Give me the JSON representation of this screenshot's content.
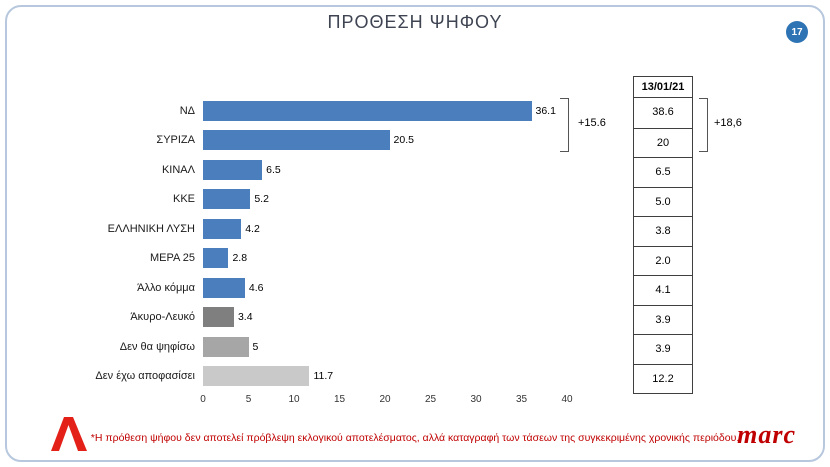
{
  "page": {
    "title": "ΠΡΟΘΕΣΗ ΨΗΦΟΥ",
    "page_number": "17",
    "footnote": "*Η πρόθεση ψήφου δεν αποτελεί πρόβλεψη εκλογικού αποτελέσματος, αλλά καταγραφή των τάσεων της συγκεκριμένης χρονικής περιόδου.",
    "brand_right": "marc"
  },
  "colors": {
    "bar_blue": "#4a7ebc",
    "gray_dark": "#7f7f7f",
    "gray_mid": "#a6a6a6",
    "gray_light": "#c9c9c9",
    "badge_blue": "#2e74b5",
    "accent_red": "#c00000",
    "alpha_red": "#e32119",
    "card_border": "#b7c7de"
  },
  "chart_data": {
    "type": "bar",
    "orientation": "horizontal",
    "title": "ΠΡΟΘΕΣΗ ΨΗΦΟΥ",
    "categories": [
      "ΝΔ",
      "ΣΥΡΙΖΑ",
      "ΚΙΝΑΛ",
      "ΚΚΕ",
      "ΕΛΛΗΝΙΚΗ ΛΥΣΗ",
      "ΜΕΡΑ 25",
      "Άλλο κόμμα",
      "Άκυρο-Λευκό",
      "Δεν θα ψηφίσω",
      "Δεν έχω αποφασίσει"
    ],
    "values": [
      36.1,
      20.5,
      6.5,
      5.2,
      4.2,
      2.8,
      4.6,
      3.4,
      5,
      11.7
    ],
    "value_labels": [
      "36.1",
      "20.5",
      "6.5",
      "5.2",
      "4.2",
      "2.8",
      "4.6",
      "3.4",
      "5",
      "11.7"
    ],
    "bar_colors": [
      "#4a7ebc",
      "#4a7ebc",
      "#4a7ebc",
      "#4a7ebc",
      "#4a7ebc",
      "#4a7ebc",
      "#4a7ebc",
      "#7f7f7f",
      "#a6a6a6",
      "#c9c9c9"
    ],
    "xlim": [
      0,
      40
    ],
    "x_ticks": [
      "0",
      "5",
      "10",
      "15",
      "20",
      "25",
      "30",
      "35",
      "40"
    ],
    "grid": false,
    "annotation_current": "+15.6",
    "previous": {
      "header": "13/01/21",
      "values": [
        "38.6",
        "20",
        "6.5",
        "5.0",
        "3.8",
        "2.0",
        "4.1",
        "3.9",
        "3.9",
        "12.2"
      ],
      "annotation": "+18,6"
    }
  }
}
